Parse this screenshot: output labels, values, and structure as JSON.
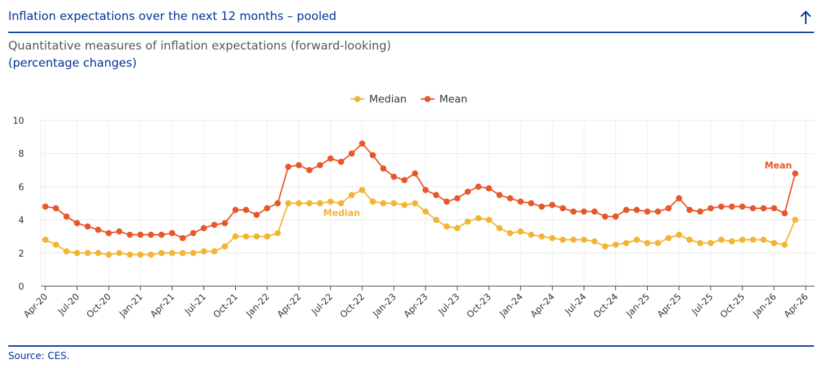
{
  "header": {
    "title": "Inflation expectations over the next 12 months – pooled",
    "subtitle": "Quantitative measures of inflation expectations (forward-looking)",
    "units": "(percentage changes)"
  },
  "chart_data": {
    "type": "line",
    "categories": [
      "Apr-20",
      null,
      null,
      "Jul-20",
      null,
      null,
      "Oct-20",
      null,
      null,
      "Jan-21",
      null,
      null,
      "Apr-21",
      null,
      null,
      "Jul-21",
      null,
      null,
      "Oct-21",
      null,
      null,
      "Jan-22",
      null,
      null,
      "Apr-22",
      null,
      null,
      "Jul-22",
      null,
      null,
      "Oct-22",
      null,
      null,
      "Jan-23",
      null,
      null,
      "Apr-23",
      null,
      null,
      "Jul-23",
      null,
      null,
      "Oct-23",
      null,
      null,
      "Jan-24",
      null,
      null,
      "Apr-24",
      null,
      null,
      "Jul-24",
      null,
      null,
      "Oct-24",
      null,
      null,
      "Jan-25",
      null,
      null,
      "Apr-25",
      null,
      null,
      "Jul-25",
      null,
      null,
      "Oct-25",
      null,
      null,
      "Jan-26",
      null,
      null,
      "Apr-26"
    ],
    "series": [
      {
        "name": "Median",
        "color": "#f2b533",
        "values": [
          2.8,
          2.5,
          2.1,
          2.0,
          2.0,
          2.0,
          1.9,
          2.0,
          1.9,
          1.9,
          1.9,
          2.0,
          2.0,
          2.0,
          2.0,
          2.1,
          2.1,
          2.4,
          3.0,
          3.0,
          3.0,
          3.0,
          3.2,
          5.0,
          5.0,
          5.0,
          5.0,
          5.1,
          5.0,
          5.5,
          5.8,
          5.1,
          5.0,
          5.0,
          4.9,
          5.0,
          4.5,
          4.0,
          3.6,
          3.5,
          3.9,
          4.1,
          4.0,
          3.5,
          3.2,
          3.3,
          3.1,
          3.0,
          2.9,
          2.8,
          2.8,
          2.8,
          2.7,
          2.4,
          2.5,
          2.6,
          2.8,
          2.6,
          2.6,
          2.9,
          3.1,
          2.8,
          2.6,
          2.6,
          2.8,
          2.7,
          2.8,
          2.8,
          2.8,
          2.6,
          2.5,
          4.0,
          null
        ]
      },
      {
        "name": "Mean",
        "color": "#e8562a",
        "values": [
          4.8,
          4.7,
          4.2,
          3.8,
          3.6,
          3.4,
          3.2,
          3.3,
          3.1,
          3.1,
          3.1,
          3.1,
          3.2,
          2.9,
          3.2,
          3.5,
          3.7,
          3.8,
          4.6,
          4.6,
          4.3,
          4.7,
          5.0,
          7.2,
          7.3,
          7.0,
          7.3,
          7.7,
          7.5,
          8.0,
          8.6,
          7.9,
          7.1,
          6.6,
          6.4,
          6.8,
          5.8,
          5.5,
          5.1,
          5.3,
          5.7,
          6.0,
          5.9,
          5.5,
          5.3,
          5.1,
          5.0,
          4.8,
          4.9,
          4.7,
          4.5,
          4.5,
          4.5,
          4.2,
          4.2,
          4.6,
          4.6,
          4.5,
          4.5,
          4.7,
          5.3,
          4.6,
          4.5,
          4.7,
          4.8,
          4.8,
          4.8,
          4.7,
          4.7,
          4.7,
          4.4,
          6.8,
          null
        ]
      }
    ],
    "annotations": [
      "Median",
      "Mean"
    ],
    "ylim": [
      0,
      10
    ],
    "yticks": [
      0,
      2,
      4,
      6,
      8,
      10
    ],
    "grid": true,
    "legend": "top"
  },
  "footer": {
    "source": "Source: CES."
  }
}
